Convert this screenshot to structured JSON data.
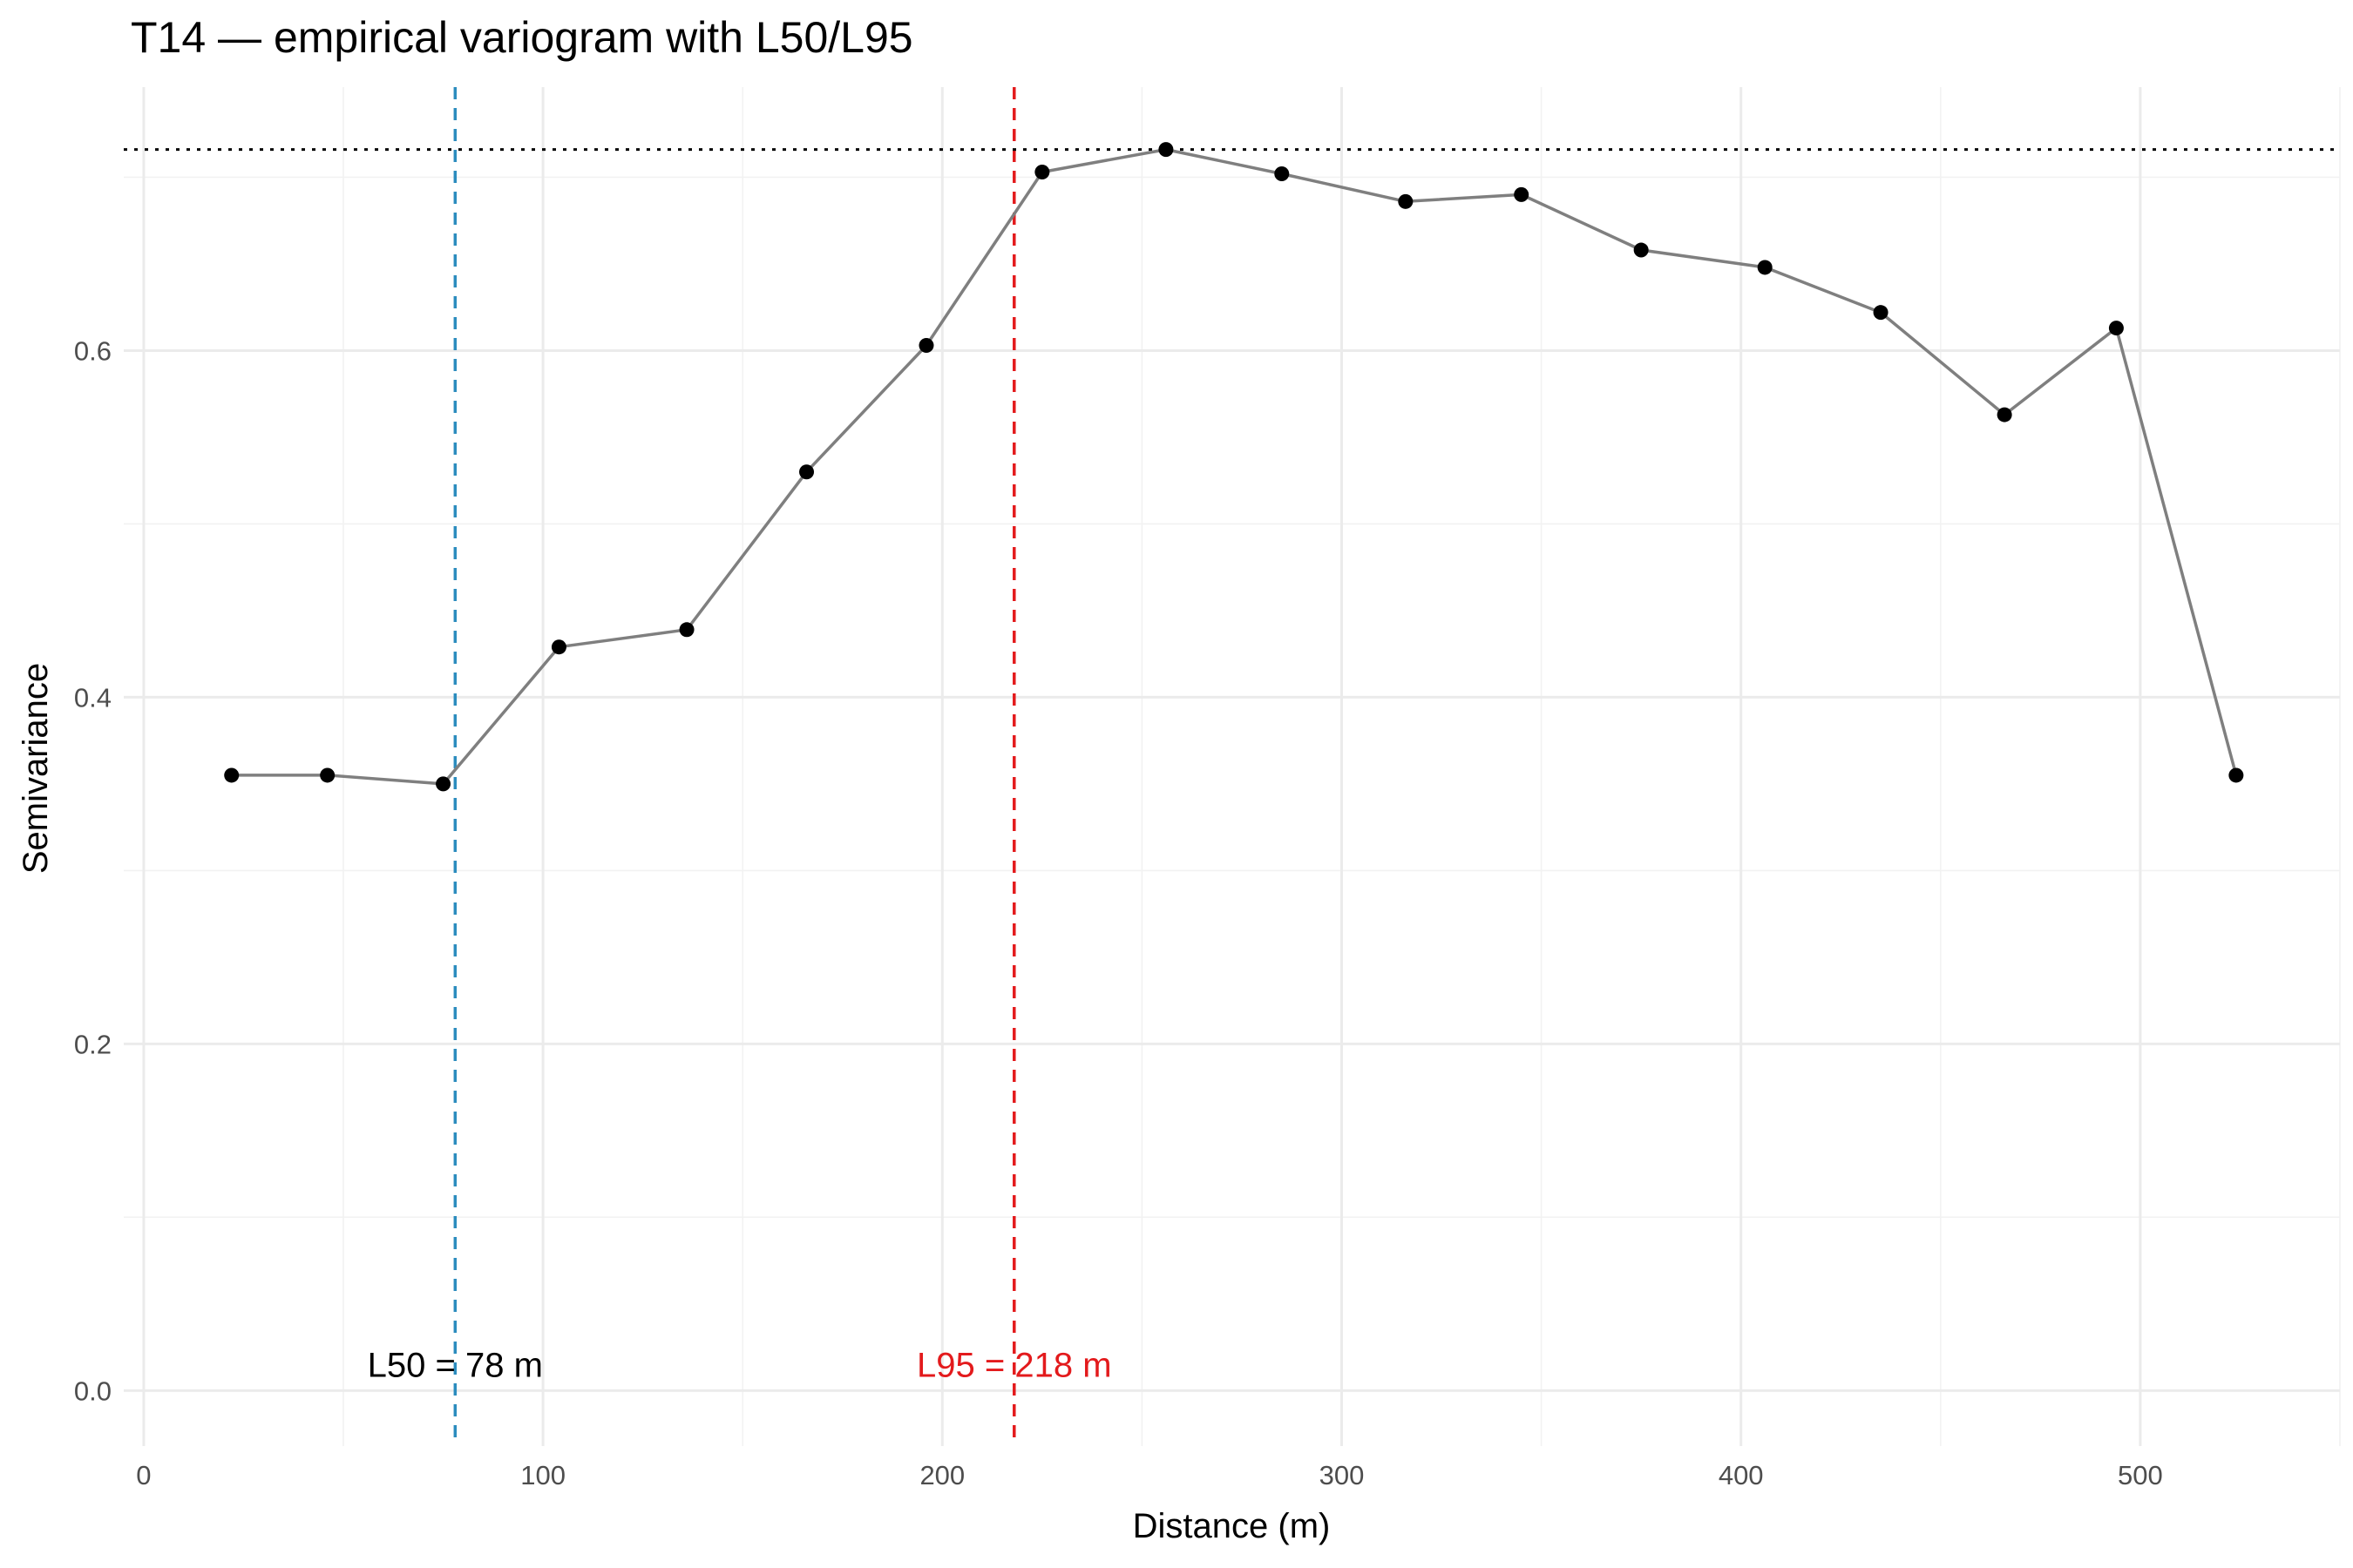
{
  "chart_data": {
    "type": "line",
    "title": "T14 — empirical variogram with L50/L95",
    "xlabel": "Distance (m)",
    "ylabel": "Semivariance",
    "xlim": [
      -5,
      550
    ],
    "ylim": [
      -0.032,
      0.752
    ],
    "x_ticks": [
      0,
      100,
      200,
      300,
      400,
      500
    ],
    "x_tick_labels": [
      "0",
      "100",
      "200",
      "300",
      "400",
      "500"
    ],
    "y_ticks": [
      0.0,
      0.2,
      0.4,
      0.6
    ],
    "y_tick_labels": [
      "0.0",
      "0.2",
      "0.4",
      "0.6"
    ],
    "grid": true,
    "series": [
      {
        "x": [
          22,
          46,
          75,
          104,
          136,
          166,
          196,
          225,
          256,
          285,
          316,
          345,
          375,
          406,
          435,
          466,
          494,
          524
        ],
        "y": [
          0.355,
          0.355,
          0.35,
          0.429,
          0.439,
          0.53,
          0.603,
          0.703,
          0.716,
          0.702,
          0.686,
          0.69,
          0.658,
          0.648,
          0.622,
          0.563,
          0.613,
          0.355
        ],
        "line_color": "#7f7f7f",
        "point_color": "#000000"
      }
    ],
    "reference_lines": [
      {
        "orientation": "vertical",
        "x": 78,
        "style": "dashed",
        "color": "#2b8cbe"
      },
      {
        "orientation": "vertical",
        "x": 218,
        "style": "dashed",
        "color": "#e31a1c"
      },
      {
        "orientation": "horizontal",
        "y": 0.716,
        "style": "dotted",
        "color": "#000000"
      }
    ],
    "annotations": [
      {
        "text": "L50 = 78 m",
        "x": 78,
        "y": 0.0,
        "color": "#000000"
      },
      {
        "text": "L95 = 218 m",
        "x": 218,
        "y": 0.0,
        "color": "#e31a1c"
      }
    ]
  }
}
